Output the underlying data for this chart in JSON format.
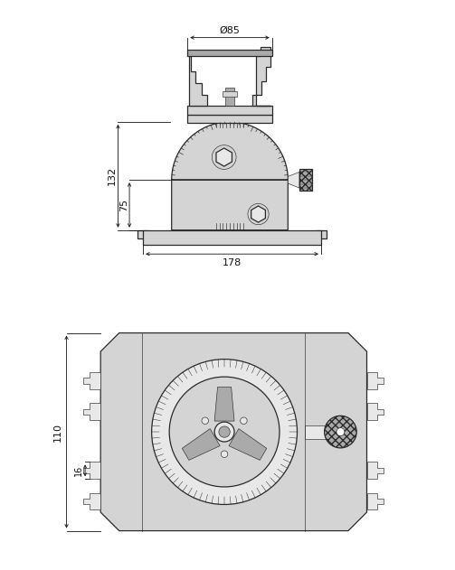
{
  "bg_color": "#ffffff",
  "line_color": "#2a2a2a",
  "fill_color": "#d4d4d4",
  "fill_light": "#e8e8e8",
  "dark_fill": "#aaaaaa",
  "dim_color": "#111111",
  "annotations": {
    "diameter_85": "Ø85",
    "dim_132": "132",
    "dim_75": "75",
    "dim_178": "178",
    "dim_110": "110",
    "dim_16": "16"
  },
  "figsize": [
    5.03,
    6.31
  ],
  "dpi": 100
}
